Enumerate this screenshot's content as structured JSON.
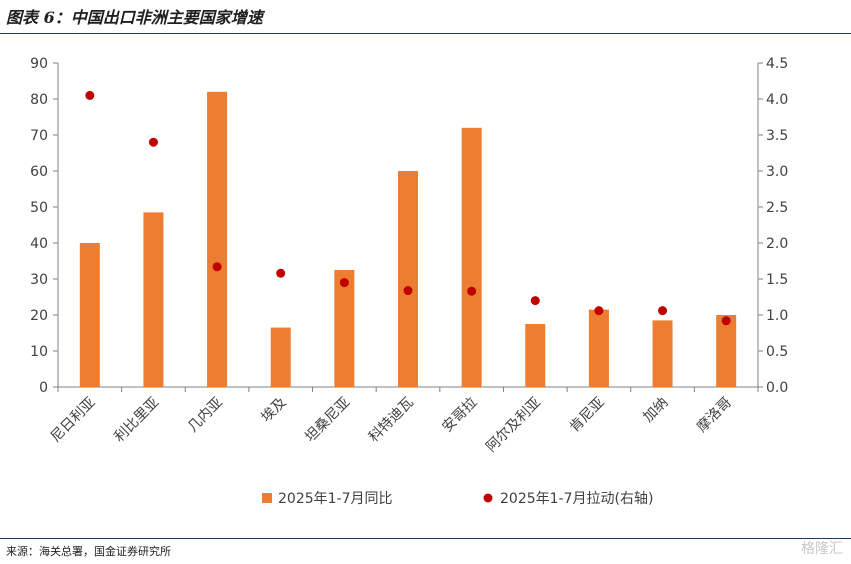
{
  "title": "图表 6：中国出口非洲主要国家增速",
  "source": "来源：海关总署，国金证券研究所",
  "watermark": "格隆汇",
  "colors": {
    "bar": "#ED7D31",
    "dot": "#C00000",
    "rule": "#1F3864"
  },
  "chart_data": {
    "type": "bar",
    "categories": [
      "尼日利亚",
      "利比里亚",
      "几内亚",
      "埃及",
      "坦桑尼亚",
      "科特迪瓦",
      "安哥拉",
      "阿尔及利亚",
      "肯尼亚",
      "加纳",
      "摩洛哥"
    ],
    "series": [
      {
        "name": "2025年1-7月同比",
        "type": "bar",
        "axis": "left",
        "values": [
          40,
          48.5,
          82,
          16.5,
          32.5,
          60,
          72,
          17.5,
          21.5,
          18.5,
          20
        ]
      },
      {
        "name": "2025年1-7月拉动(右轴)",
        "type": "scatter",
        "axis": "right",
        "values": [
          4.05,
          3.4,
          1.67,
          1.58,
          1.45,
          1.34,
          1.33,
          1.2,
          1.06,
          1.06,
          0.92
        ]
      }
    ],
    "ylim": [
      0,
      90
    ],
    "yticks": [
      "0",
      "10",
      "20",
      "30",
      "40",
      "50",
      "60",
      "70",
      "80",
      "90"
    ],
    "y2lim": [
      0,
      4.5
    ],
    "y2ticks": [
      "0.0",
      "0.5",
      "1.0",
      "1.5",
      "2.0",
      "2.5",
      "3.0",
      "3.5",
      "4.0",
      "4.5"
    ],
    "grid": false,
    "legend": "bottom"
  }
}
